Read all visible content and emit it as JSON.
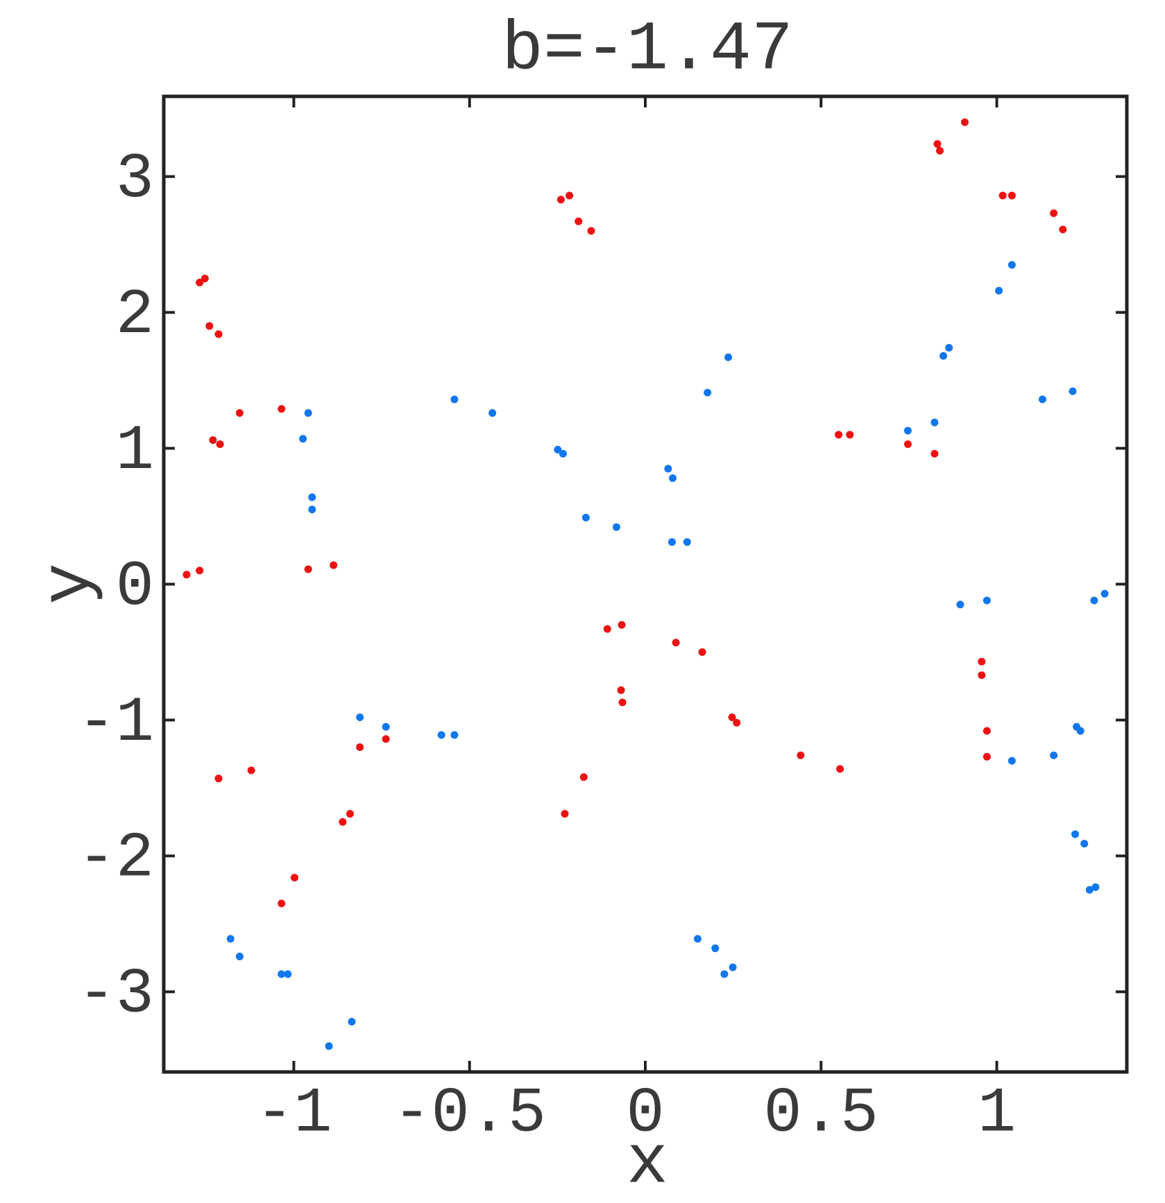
{
  "chart_data": {
    "type": "scatter",
    "title": "b=-1.47",
    "x_label": "x",
    "y_label": "y",
    "xlim": [
      -1.37,
      1.37
    ],
    "ylim": [
      -3.59,
      3.59
    ],
    "xticks": [
      -1,
      -0.5,
      0,
      0.5,
      1
    ],
    "yticks": [
      -3,
      -2,
      -1,
      0,
      1,
      2,
      3
    ],
    "series": [
      {
        "color": "#ee1111",
        "x": [
          -1.305,
          -1.268,
          -1.268,
          -1.253,
          -1.24,
          -1.214,
          -1.23,
          -1.21,
          -1.154,
          -1.035,
          -0.959,
          -0.887,
          -1.214,
          -1.121,
          -0.812,
          -0.738,
          -0.861,
          -0.84,
          -0.998,
          -1.035,
          -0.24,
          -0.216,
          -0.19,
          -0.154,
          -0.108,
          -0.067,
          -0.069,
          -0.065,
          -0.175,
          -0.229,
          0.087,
          0.162,
          0.247,
          0.26,
          0.442,
          0.554,
          0.55,
          0.582,
          0.747,
          0.823,
          0.831,
          0.838,
          0.909,
          1.017,
          1.043,
          1.162,
          1.188,
          0.957,
          0.957,
          0.972,
          0.972
        ],
        "values": [
          0.07,
          0.1,
          2.22,
          2.25,
          1.9,
          1.84,
          1.06,
          1.03,
          1.26,
          1.29,
          0.11,
          0.14,
          -1.43,
          -1.37,
          -1.2,
          -1.14,
          -1.75,
          -1.69,
          -2.16,
          -2.35,
          2.83,
          2.86,
          2.67,
          2.6,
          -0.33,
          -0.3,
          -0.78,
          -0.87,
          -1.42,
          -1.69,
          -0.43,
          -0.5,
          -0.98,
          -1.02,
          -1.26,
          -1.36,
          1.1,
          1.1,
          1.03,
          0.96,
          3.24,
          3.19,
          3.4,
          2.86,
          2.86,
          2.73,
          2.61,
          -0.57,
          -0.67,
          -1.08,
          -1.27
        ]
      },
      {
        "color": "#1177ee",
        "x": [
          -0.959,
          -0.974,
          -0.948,
          -0.948,
          -0.543,
          -0.435,
          -0.249,
          -0.234,
          -0.169,
          -0.082,
          0.065,
          0.078,
          0.076,
          0.119,
          0.177,
          0.236,
          -0.812,
          -0.738,
          -0.58,
          -0.543,
          -1.18,
          -1.154,
          -1.035,
          -1.017,
          -0.9,
          -0.835,
          0.149,
          0.199,
          0.225,
          0.249,
          0.747,
          0.823,
          0.848,
          0.864,
          1.006,
          1.043,
          1.13,
          1.216,
          0.896,
          0.972,
          1.277,
          1.307,
          1.043,
          1.162,
          1.227,
          1.238,
          1.223,
          1.249,
          1.264,
          1.281
        ],
        "values": [
          1.26,
          1.07,
          0.64,
          0.55,
          1.36,
          1.26,
          0.99,
          0.96,
          0.49,
          0.42,
          0.85,
          0.78,
          0.31,
          0.31,
          1.41,
          1.67,
          -0.98,
          -1.05,
          -1.11,
          -1.11,
          -2.61,
          -2.74,
          -2.87,
          -2.87,
          -3.4,
          -3.22,
          -2.61,
          -2.68,
          -2.87,
          -2.82,
          1.13,
          1.19,
          1.68,
          1.74,
          2.16,
          2.35,
          1.36,
          1.42,
          -0.15,
          -0.12,
          -0.12,
          -0.07,
          -1.3,
          -1.26,
          -1.05,
          -1.08,
          -1.84,
          -1.91,
          -2.25,
          -2.23
        ]
      }
    ]
  }
}
